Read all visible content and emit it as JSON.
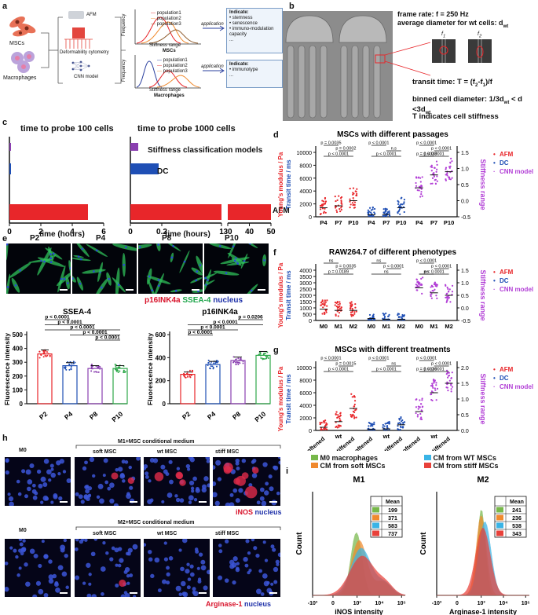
{
  "panel_labels": {
    "a": "a",
    "b": "b",
    "c": "c",
    "d": "d",
    "e": "e",
    "f": "f",
    "g": "g",
    "h": "h",
    "i": "i"
  },
  "panel_a": {
    "left_labels": [
      "MSCs",
      "Macrophages"
    ],
    "methods": [
      "AFM",
      "Deformability cytometry",
      "CNN model"
    ],
    "plot_top": {
      "ylabel": "Frequency",
      "xlabel": "Stiffness range",
      "subtitle": "MSCs",
      "legend": [
        "population1",
        "population2",
        "population3"
      ]
    },
    "plot_bottom": {
      "ylabel": "Frequency",
      "xlabel": "Stiffness range",
      "subtitle": "Macrophages",
      "legend": [
        "population1",
        "population2",
        "population3"
      ]
    },
    "arrow_label": "application",
    "indicate_top": {
      "title": "Indicate:",
      "items": [
        "stemness",
        "senescence",
        "immuno-modulation capacity",
        "..."
      ]
    },
    "indicate_bottom": {
      "title": "Indicate:",
      "items": [
        "immunotype",
        "..."
      ]
    }
  },
  "panel_b": {
    "line1": "frame rate: f = 250 Hz",
    "line2": "average diameter for wt cells: d",
    "line2_sub": "wt",
    "f1": "f",
    "f1_sub": "1",
    "f2": "f",
    "f2_sub": "2",
    "transit": "transit time: T = (f",
    "transit_rest": "2",
    "binned": "binned cell diameter: 1/3d",
    "indicates": "T indicates cell stiffness"
  },
  "panel_c": {
    "titles": [
      "time to probe 100 cells",
      "time to probe 1000 cells"
    ],
    "methods": [
      "Stiffness classification models",
      "DC",
      "AFM"
    ],
    "xlabel": "time (hours)",
    "colors": {
      "afm": "#e8262a",
      "dc": "#1f4fb5",
      "cnn": "#8a3fb0"
    }
  },
  "chart_data": [
    {
      "type": "bar",
      "title": "time to probe 100 cells",
      "xlabel": "time (hours)",
      "categories": [
        "Stiffness classification models",
        "DC",
        "AFM"
      ],
      "values": [
        0.02,
        0.1,
        5
      ],
      "xlim": [
        0,
        6
      ],
      "xticks": [
        "0",
        "2",
        "4",
        "6"
      ]
    },
    {
      "type": "bar",
      "title": "time to probe 1000 cells",
      "xlabel": "time (hours)",
      "categories": [
        "Stiffness classification models",
        "DC",
        "AFM"
      ],
      "values": [
        0.05,
        0.18,
        50
      ],
      "xticks": [
        "0",
        "0.2",
        "1",
        "30",
        "40",
        "50"
      ]
    },
    {
      "type": "bar",
      "title": "SSEA-4",
      "ylabel": "Fluorescence intensity",
      "categories": [
        "P2",
        "P4",
        "P8",
        "P10"
      ],
      "values": [
        360,
        275,
        255,
        255
      ],
      "ylim": [
        0,
        500
      ],
      "yticks": [
        "0",
        "100",
        "200",
        "300",
        "400",
        "500"
      ],
      "colors": [
        "#e8262a",
        "#1f4fb5",
        "#8a3fb0",
        "#2ea84a"
      ],
      "significance": [
        "p < 0.0001",
        "p < 0.0001",
        "p < 0.0001",
        "p < 0.0001",
        "p < 0.0001"
      ]
    },
    {
      "type": "bar",
      "title": "p16INK4a",
      "ylabel": "Fluorescence intensity",
      "categories": [
        "P2",
        "P4",
        "P8",
        "P10"
      ],
      "values": [
        255,
        340,
        375,
        420
      ],
      "ylim": [
        0,
        600
      ],
      "yticks": [
        "0",
        "200",
        "400",
        "600"
      ],
      "colors": [
        "#e8262a",
        "#1f4fb5",
        "#8a3fb0",
        "#2ea84a"
      ],
      "significance": [
        "p = 0.0206",
        "p < 0.0001",
        "p < 0.0001",
        "p < 0.0001"
      ]
    },
    {
      "type": "scatter",
      "title": "MSCs with different passages",
      "ylabel_left": "Young's modulus / Pa",
      "ylabel_left2": "Transit time / ms",
      "ylabel_right": "Stiffness range",
      "categories": [
        "P4",
        "P7",
        "P10",
        "P4",
        "P7",
        "P10",
        "P4",
        "P7",
        "P10"
      ],
      "series": [
        {
          "name": "AFM",
          "medians": [
            1400,
            1700,
            2500
          ]
        },
        {
          "name": "DC",
          "medians": [
            300,
            350,
            1400
          ]
        },
        {
          "name": "CNN model",
          "medians": [
            0.4,
            0.8,
            0.9
          ]
        }
      ],
      "ylim_left": [
        0,
        10000
      ],
      "yticks_left": [
        "0",
        "2000",
        "4000",
        "6000",
        "8000",
        "10000"
      ],
      "ylim_right": [
        -0.5,
        1.5
      ],
      "yticks_right": [
        "-0.5",
        "0.0",
        "0.5",
        "1.0",
        "1.5"
      ],
      "significance": [
        "p < 0.0001",
        "p = 0.0002",
        "p = 0.0035",
        "p < 0.0001",
        "n.s",
        "p < 0.0001",
        "p < 0.0001",
        "p < 0.0001",
        "p < 0.0001",
        "p = 0.0038"
      ]
    },
    {
      "type": "scatter",
      "title": "RAW264.7 of different phenotypes",
      "ylabel_left": "Young's modulus / Pa",
      "ylabel_left2": "Transit time / ms",
      "ylabel_right": "Stiffness range",
      "categories": [
        "M0",
        "M1",
        "M2",
        "M0",
        "M1",
        "M2",
        "M0",
        "M1",
        "M2"
      ],
      "series": [
        {
          "name": "AFM",
          "medians": [
            900,
            800,
            800
          ]
        },
        {
          "name": "DC",
          "medians": [
            150,
            100,
            100
          ]
        },
        {
          "name": "CNN model",
          "medians": [
            0.8,
            0.6,
            0.5
          ]
        }
      ],
      "ylim_left": [
        0,
        4000
      ],
      "yticks_left": [
        "0",
        "500",
        "1000",
        "1500",
        "2000",
        "2500",
        "3000",
        "3500",
        "4000"
      ],
      "ylim_right": [
        -0.5,
        1.5
      ],
      "yticks_right": [
        "-0.5",
        "0.0",
        "0.5",
        "1.0",
        "1.5"
      ],
      "significance": [
        "p = 0.0189",
        "p = 0.0035",
        "ns",
        "ns",
        "p < 0.0001",
        "ns",
        "p < 0.0001",
        "p < 0.0001",
        "p < 0.0001",
        "ns"
      ]
    },
    {
      "type": "scatter",
      "title": "MSCs with different treatments",
      "ylabel_left": "Young's modulus / Pa",
      "ylabel_left2": "Transit time / ms",
      "ylabel_right": "Stiffness range",
      "categories": [
        "softened",
        "wt",
        "stiffened",
        "softened",
        "wt",
        "stiffened",
        "softened",
        "wt",
        "stiffened"
      ],
      "series": [
        {
          "name": "AFM",
          "medians": [
            500,
            1400,
            3500
          ]
        },
        {
          "name": "DC",
          "medians": [
            200,
            250,
            900
          ]
        },
        {
          "name": "CNN model",
          "medians": [
            0.6,
            1.2,
            1.5
          ]
        }
      ],
      "ylim_left": [
        0,
        10000
      ],
      "yticks_left": [
        "0",
        "2000",
        "4000",
        "6000",
        "8000",
        "10000"
      ],
      "ylim_right": [
        0,
        2.0
      ],
      "yticks_right": [
        "0.0",
        "0.5",
        "1.0",
        "1.5",
        "2.0"
      ],
      "significance": [
        "p < 0.0001",
        "p = 0.0015",
        "p < 0.0001",
        "p < 0.0001",
        "ns",
        "p < 0.0001",
        "p < 0.0001",
        "p < 0.0001",
        "p < 0.0001",
        "p = 0.0136"
      ]
    },
    {
      "type": "area",
      "title": "M1",
      "xlabel": "iNOS intensity",
      "ylabel": "Count",
      "series": [
        {
          "name": "M0 macrophages",
          "mean": 199
        },
        {
          "name": "CM from soft MSCs",
          "mean": 371
        },
        {
          "name": "CM from WT MSCs",
          "mean": 583
        },
        {
          "name": "CM from stiff MSCs",
          "mean": 737
        }
      ],
      "xticks": [
        "-10³",
        "0",
        "10³",
        "10⁴",
        "10⁵"
      ]
    },
    {
      "type": "area",
      "title": "M2",
      "xlabel": "Arginase-1 intensity",
      "ylabel": "Count",
      "series": [
        {
          "name": "M0 macrophages",
          "mean": 241
        },
        {
          "name": "CM from soft MSCs",
          "mean": 236
        },
        {
          "name": "CM from WT MSCs",
          "mean": 538
        },
        {
          "name": "CM from stiff MSCs",
          "mean": 343
        }
      ],
      "xticks": [
        "-10³",
        "0",
        "10³",
        "10⁴",
        "10⁵"
      ]
    }
  ],
  "panel_e": {
    "passages": [
      "P2",
      "P4",
      "P8",
      "P10"
    ],
    "stain_labels": [
      "p16INK4a",
      "SSEA-4",
      "nucleus"
    ],
    "stain_colors": [
      "#d8122a",
      "#1ea54a",
      "#1c2fa8"
    ]
  },
  "panel_dfg": {
    "titles": [
      "MSCs with different passages",
      "RAW264.7 of different phenotypes",
      "MSCs with different treatments"
    ],
    "legend": [
      "AFM",
      "DC",
      "CNN model"
    ],
    "ylabel_left": "Young's modulus / Pa",
    "ylabel_left2": "Transit time / ms",
    "ylabel_right": "Stiffness range"
  },
  "panel_h": {
    "m1_header": "M1+MSC conditional medium",
    "m2_header": "M2+MSC conditional medium",
    "col_labels": [
      "M0",
      "soft MSC",
      "wt MSC",
      "stiff MSC"
    ],
    "m1_stain": "iNOS",
    "m2_stain": "Arginase-1",
    "nucleus": "nucleus"
  },
  "panel_i": {
    "legend": [
      "M0 macrophages",
      "CM from soft MSCs",
      "CM from WT MSCs",
      "CM from stiff MSCs"
    ],
    "legend_colors": [
      "#77b84a",
      "#f08a2e",
      "#3ab4e6",
      "#e8413a"
    ],
    "titles": [
      "M1",
      "M2"
    ],
    "xlabels": [
      "iNOS intensity",
      "Arginase-1 intensity"
    ],
    "ylabel": "Count",
    "mean_header": "Mean",
    "means_m1": [
      "199",
      "371",
      "583",
      "737"
    ],
    "means_m2": [
      "241",
      "236",
      "538",
      "343"
    ]
  }
}
